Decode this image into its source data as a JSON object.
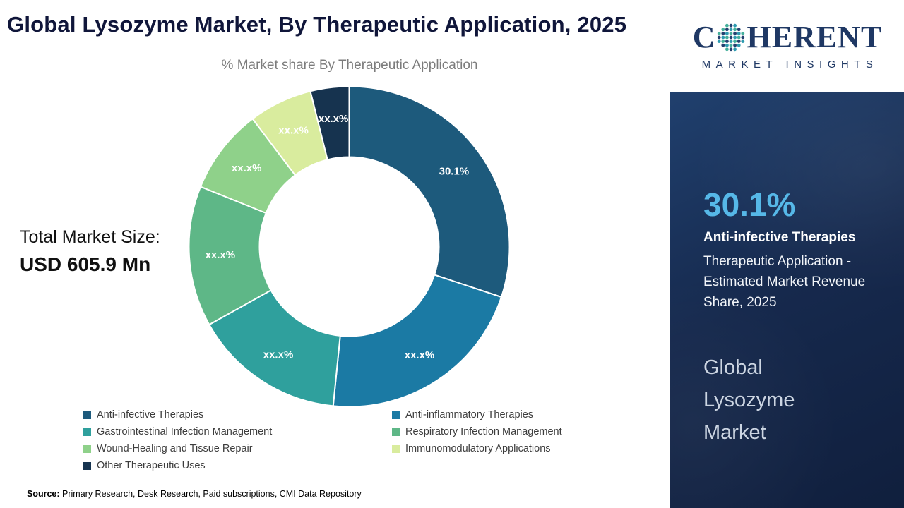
{
  "title": "Global Lysozyme Market, By Therapeutic Application, 2025",
  "chart_subtitle": "% Market share By Therapeutic Application",
  "total_market": {
    "label": "Total Market Size:",
    "value": "USD 605.9 Mn"
  },
  "source": {
    "label": "Source:",
    "text": " Primary Research, Desk Research, Paid subscriptions, CMI Data Repository"
  },
  "logo": {
    "brand_first_letter": "C",
    "brand_rest": "HERENT",
    "tagline": "MARKET INSIGHTS",
    "brand_color": "#1f3864",
    "dot_colors": [
      "#24406f",
      "#2e9bb0",
      "#45b09b"
    ]
  },
  "panel": {
    "highlight_value": "30.1%",
    "highlight_segment": "Anti-infective Therapies",
    "highlight_description": "Therapeutic Application - Estimated Market Revenue Share, 2025",
    "market_name": "Global Lysozyme Market",
    "accent_color": "#56b8e8",
    "background_color": "#16294d"
  },
  "chart_data": {
    "type": "pie",
    "donut": true,
    "title": "% Market share By Therapeutic Application",
    "categories": [
      "Anti-infective Therapies",
      "Anti-inflammatory Therapies",
      "Gastrointestinal Infection Management",
      "Respiratory Infection Management",
      "Wound-Healing and Tissue Repair",
      "Immunomodulatory Applications",
      "Other Therapeutic Uses"
    ],
    "values": [
      30.1,
      21.5,
      15.3,
      14.2,
      8.6,
      6.4,
      3.9
    ],
    "labels": [
      "30.1%",
      "xx.x%",
      "xx.x%",
      "xx.x%",
      "xx.x%",
      "xx.x%",
      "xx.x%"
    ],
    "colors": [
      "#1d5a7c",
      "#1b7aa4",
      "#2fa09d",
      "#5eb787",
      "#8fd18a",
      "#d9ec9e",
      "#16334f"
    ],
    "legend_position": "bottom",
    "start_angle_deg": 0,
    "direction": "clockwise"
  }
}
